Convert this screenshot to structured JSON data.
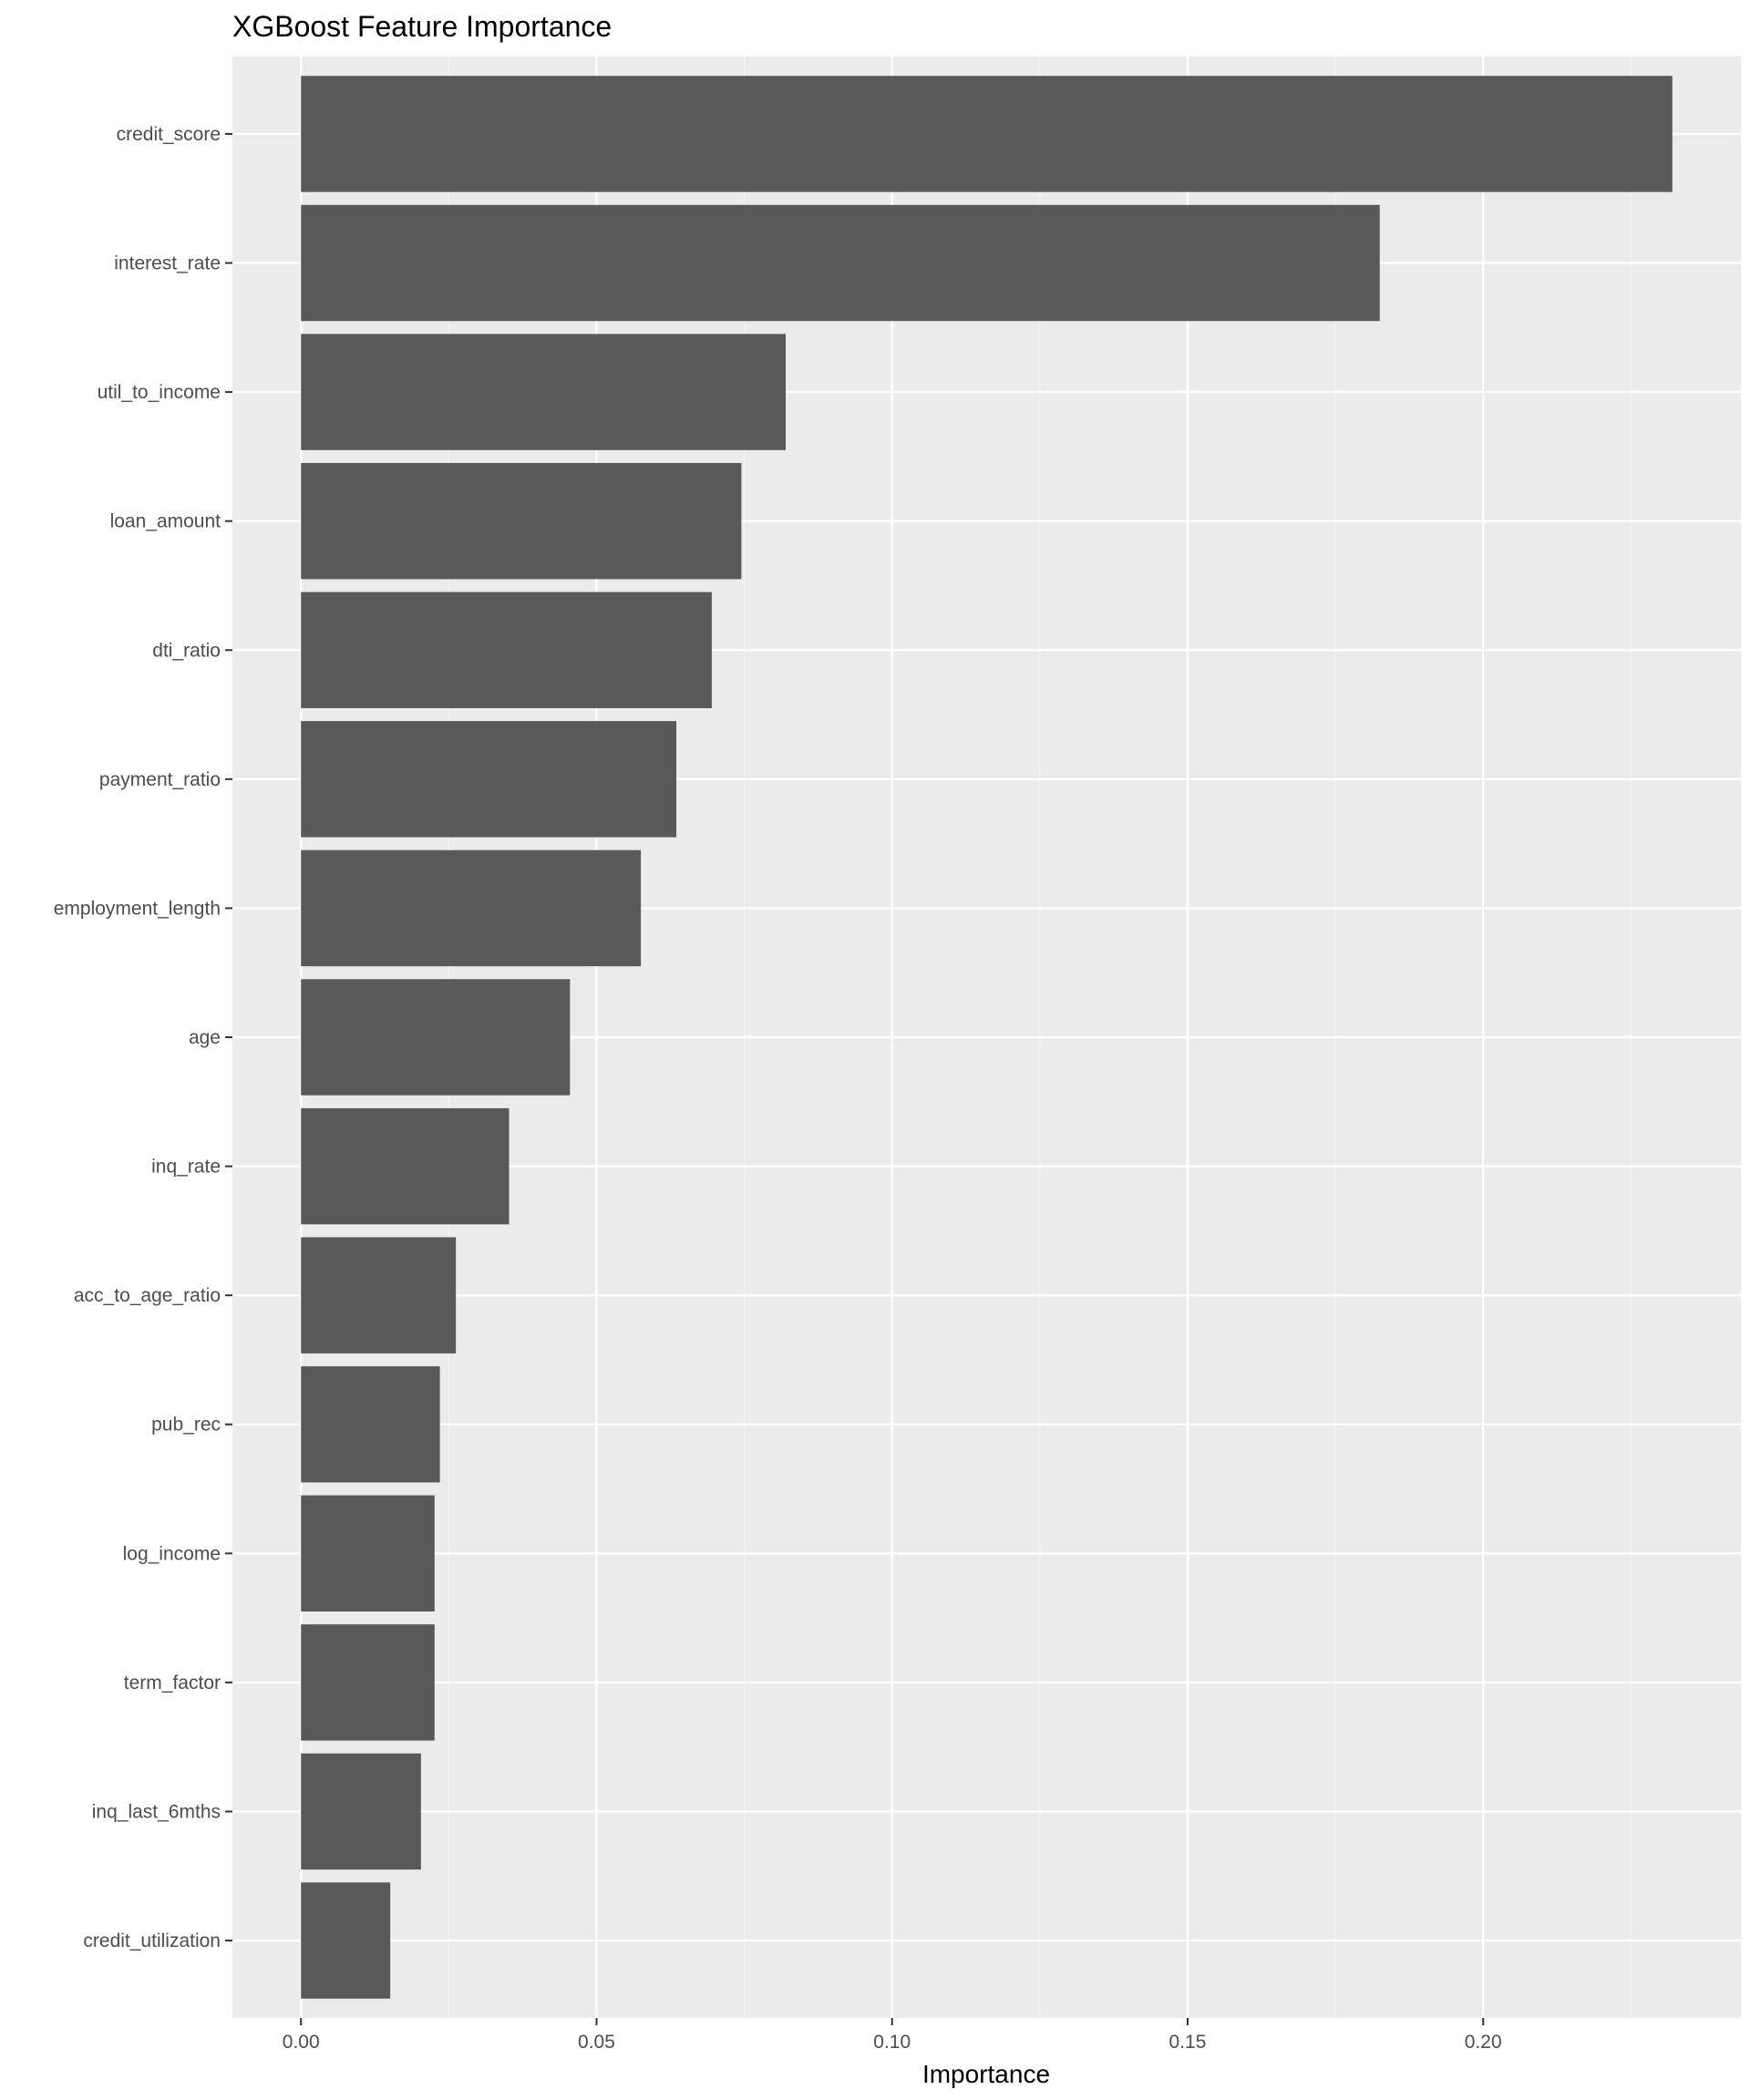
{
  "chart_data": {
    "type": "bar",
    "orientation": "horizontal",
    "title": "XGBoost Feature Importance",
    "xlabel": "Importance",
    "ylabel": "",
    "categories": [
      "credit_score",
      "interest_rate",
      "util_to_income",
      "loan_amount",
      "dti_ratio",
      "payment_ratio",
      "employment_length",
      "age",
      "inq_rate",
      "acc_to_age_ratio",
      "pub_rec",
      "log_income",
      "term_factor",
      "inq_last_6mths",
      "credit_utilization"
    ],
    "values": [
      0.232,
      0.1825,
      0.082,
      0.0745,
      0.0695,
      0.0635,
      0.0575,
      0.0455,
      0.0352,
      0.0262,
      0.0235,
      0.0226,
      0.0226,
      0.0203,
      0.0151
    ],
    "xlim": [
      -0.0116,
      0.2436
    ],
    "x_ticks": [
      0.0,
      0.05,
      0.1,
      0.15,
      0.2
    ],
    "x_tick_labels": [
      "0.00",
      "0.05",
      "0.10",
      "0.15",
      "0.20"
    ],
    "grid": true,
    "legend": "none",
    "colors": {
      "bar": "#595959",
      "panel_background": "#ebebeb",
      "grid_major": "#ffffff",
      "grid_minor": "#f5f5f5",
      "tick_text": "#4d4d4d",
      "tick_mark": "#333333",
      "title_text": "#000000"
    }
  }
}
